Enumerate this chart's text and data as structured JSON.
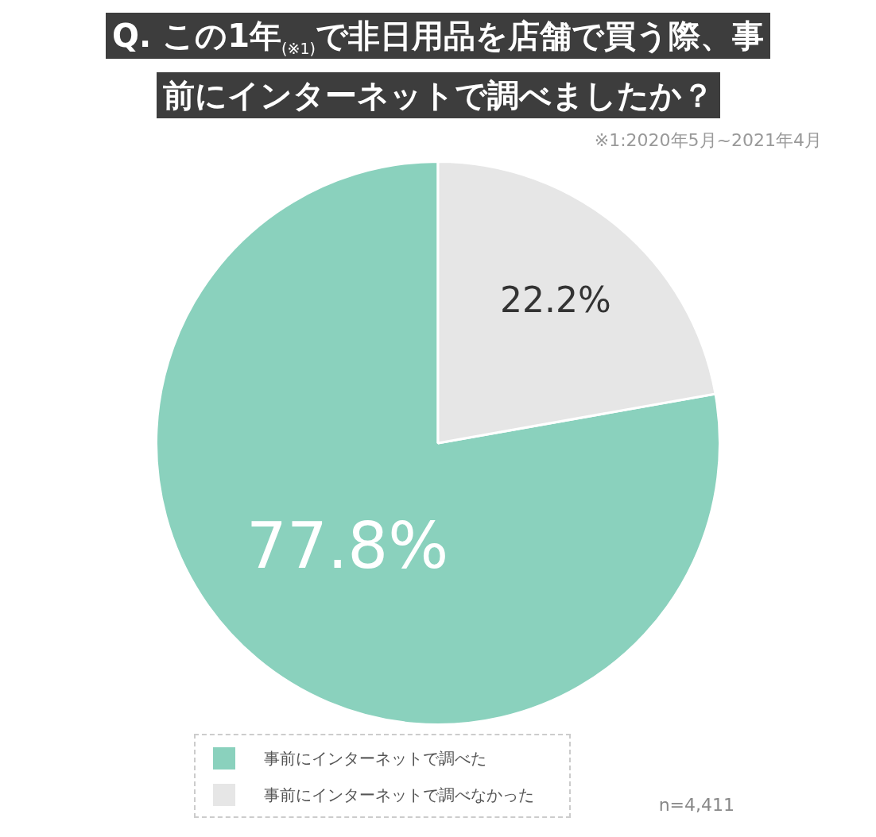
{
  "chart_data": {
    "type": "pie",
    "title": "Q. この1年$_{(※1)}$で非日用品を店舗で買う際、事前にインターネットで調べましたか？",
    "subtitle": "※1:2020年5月~2021年4月",
    "categories": [
      "事前にインターネットで調べた",
      "事前にインターネットで調べなかった"
    ],
    "values": [
      77.8,
      22.2
    ],
    "colors": [
      "#8ad1bd",
      "#e6e6e6"
    ],
    "value_labels": [
      "77.8%",
      "22.2%"
    ],
    "legend": "bottom",
    "annotations": [
      "n=4,411"
    ]
  }
}
